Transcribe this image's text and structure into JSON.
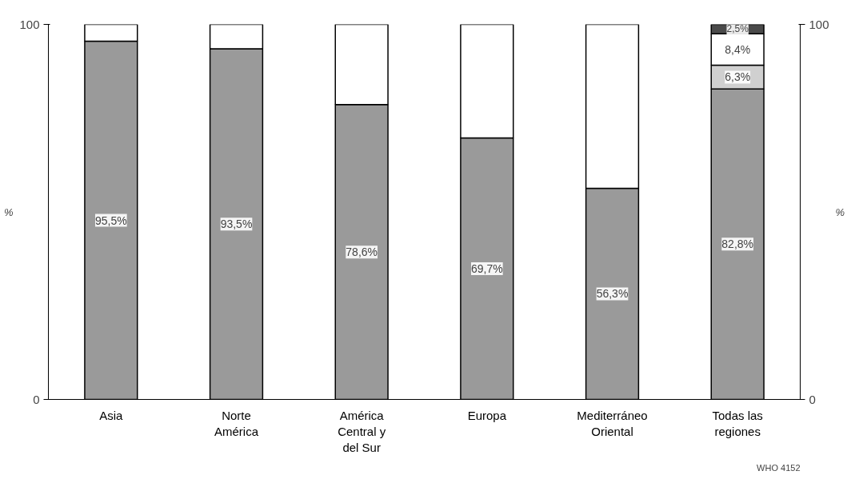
{
  "chart_data": {
    "type": "bar",
    "stacked": true,
    "categories": [
      "Asia",
      "Norte América",
      "América Central y del Sur",
      "Europa",
      "Mediterráneo Oriental",
      "Todas las regiones"
    ],
    "series": [
      {
        "color": "#9a9a9a",
        "values": [
          95.5,
          93.5,
          78.6,
          69.7,
          56.3,
          82.8
        ],
        "value_labels": [
          "95,5%",
          "93,5%",
          "78,6%",
          "69,7%",
          "56,3%",
          "82,8%"
        ]
      },
      {
        "color": "#d0d0d0",
        "values": [
          null,
          null,
          null,
          null,
          null,
          6.3
        ],
        "value_labels": [
          null,
          null,
          null,
          null,
          null,
          "6,3%"
        ]
      },
      {
        "color": "#ffffff",
        "values": [
          4.5,
          6.5,
          21.4,
          30.3,
          43.7,
          8.4
        ],
        "value_labels": [
          null,
          null,
          null,
          null,
          null,
          "8,4%"
        ]
      },
      {
        "color": "#4a4a4a",
        "values": [
          null,
          null,
          null,
          null,
          null,
          2.5
        ],
        "value_labels": [
          null,
          null,
          null,
          null,
          null,
          "2,5%"
        ]
      }
    ],
    "ylabel": "%",
    "y2label": "%",
    "ylim": [
      0,
      100
    ],
    "yticks": [
      0,
      100
    ],
    "y2lim": [
      0,
      100
    ],
    "y2ticks": [
      0,
      100
    ],
    "annotations": [
      "WHO 4152"
    ]
  }
}
